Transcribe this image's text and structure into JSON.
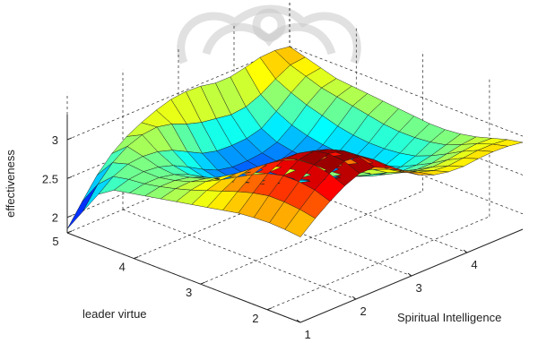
{
  "chart_data": {
    "type": "surface",
    "title": "",
    "xlabel": "Spiritual Intelligence",
    "ylabel": "leader virtue",
    "zlabel": "effectiveness",
    "x_range": [
      1,
      5
    ],
    "y_range": [
      1.5,
      5
    ],
    "z_range": [
      1.8,
      3.6
    ],
    "x_ticks": [
      "1",
      "2",
      "3",
      "4"
    ],
    "y_ticks": [
      "2",
      "3",
      "4",
      "5"
    ],
    "z_ticks": [
      "2",
      "2.5",
      "3"
    ],
    "grid": true,
    "colormap": "jet",
    "x": [
      1.0,
      1.2667,
      1.5333,
      1.8,
      2.0667,
      2.3333,
      2.6,
      2.8667,
      3.1333,
      3.4,
      3.6667,
      3.9333,
      4.2,
      4.4667,
      4.7333,
      5.0
    ],
    "y": [
      5.0,
      4.7667,
      4.5333,
      4.3,
      4.0667,
      3.8333,
      3.6,
      3.3667,
      3.1333,
      2.9,
      2.6667,
      2.4333,
      2.2,
      1.9667,
      1.7333,
      1.5
    ],
    "z": [
      [
        1.85,
        2.12,
        2.38,
        2.58,
        2.72,
        2.82,
        2.9,
        2.96,
        2.98,
        2.97,
        2.93,
        2.93,
        2.97,
        3.02,
        3.03,
        3.0
      ],
      [
        2.15,
        2.42,
        2.62,
        2.75,
        2.82,
        2.84,
        2.8,
        2.72,
        2.66,
        2.63,
        2.6,
        2.62,
        2.7,
        2.82,
        2.92,
        2.94
      ],
      [
        2.45,
        2.6,
        2.68,
        2.7,
        2.68,
        2.62,
        2.52,
        2.42,
        2.37,
        2.36,
        2.37,
        2.42,
        2.56,
        2.72,
        2.85,
        2.88
      ],
      [
        2.58,
        2.64,
        2.66,
        2.64,
        2.58,
        2.48,
        2.37,
        2.28,
        2.24,
        2.24,
        2.26,
        2.32,
        2.46,
        2.64,
        2.78,
        2.82
      ],
      [
        2.62,
        2.66,
        2.66,
        2.62,
        2.54,
        2.43,
        2.32,
        2.24,
        2.2,
        2.2,
        2.22,
        2.28,
        2.4,
        2.58,
        2.74,
        2.8
      ],
      [
        2.66,
        2.7,
        2.7,
        2.66,
        2.58,
        2.47,
        2.36,
        2.27,
        2.22,
        2.21,
        2.22,
        2.26,
        2.36,
        2.52,
        2.7,
        2.78
      ],
      [
        2.7,
        2.75,
        2.76,
        2.72,
        2.64,
        2.54,
        2.43,
        2.33,
        2.26,
        2.24,
        2.24,
        2.26,
        2.34,
        2.48,
        2.66,
        2.76
      ],
      [
        2.74,
        2.81,
        2.84,
        2.82,
        2.75,
        2.64,
        2.53,
        2.42,
        2.34,
        2.3,
        2.28,
        2.28,
        2.34,
        2.46,
        2.62,
        2.74
      ],
      [
        2.78,
        2.88,
        2.94,
        2.94,
        2.88,
        2.78,
        2.66,
        2.54,
        2.44,
        2.38,
        2.34,
        2.32,
        2.36,
        2.46,
        2.6,
        2.72
      ],
      [
        2.82,
        2.95,
        3.05,
        3.08,
        3.04,
        2.94,
        2.82,
        2.68,
        2.56,
        2.48,
        2.42,
        2.38,
        2.4,
        2.48,
        2.6,
        2.7
      ],
      [
        2.86,
        3.02,
        3.16,
        3.22,
        3.2,
        3.12,
        2.98,
        2.82,
        2.68,
        2.58,
        2.5,
        2.46,
        2.46,
        2.52,
        2.62,
        2.7
      ],
      [
        2.9,
        3.08,
        3.25,
        3.34,
        3.35,
        3.28,
        3.14,
        2.96,
        2.8,
        2.68,
        2.6,
        2.56,
        2.56,
        2.6,
        2.66,
        2.72
      ],
      [
        2.92,
        3.12,
        3.3,
        3.42,
        3.46,
        3.4,
        3.25,
        3.06,
        2.9,
        2.78,
        2.7,
        2.66,
        2.66,
        2.7,
        2.74,
        2.76
      ],
      [
        2.93,
        3.12,
        3.3,
        3.44,
        3.5,
        3.46,
        3.32,
        3.14,
        2.98,
        2.86,
        2.8,
        2.77,
        2.78,
        2.81,
        2.83,
        2.82
      ],
      [
        2.92,
        3.1,
        3.27,
        3.4,
        3.48,
        3.46,
        3.34,
        3.18,
        3.04,
        2.94,
        2.88,
        2.86,
        2.88,
        2.9,
        2.9,
        2.88
      ],
      [
        2.9,
        3.06,
        3.2,
        3.32,
        3.4,
        3.4,
        3.31,
        3.18,
        3.06,
        2.98,
        2.94,
        2.93,
        2.95,
        2.96,
        2.95,
        2.92
      ]
    ]
  }
}
